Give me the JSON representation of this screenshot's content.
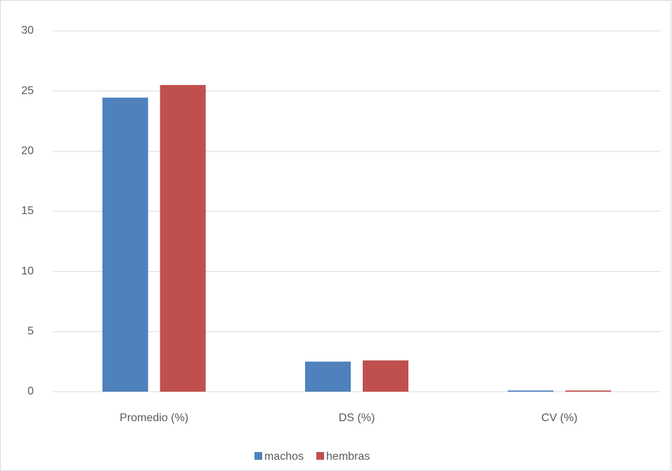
{
  "chart_data": {
    "type": "bar",
    "categories": [
      "Promedio (%)",
      "DS (%)",
      "CV (%)"
    ],
    "series": [
      {
        "name": "machos",
        "color": "#4f81bd",
        "values": [
          24.45,
          2.5,
          0.1
        ]
      },
      {
        "name": "hembras",
        "color": "#c0504d",
        "values": [
          25.5,
          2.6,
          0.1
        ]
      }
    ],
    "ylim": [
      0,
      30
    ],
    "yticks": [
      0,
      5,
      10,
      15,
      20,
      25,
      30
    ],
    "grid": true,
    "legend": "bottom"
  }
}
